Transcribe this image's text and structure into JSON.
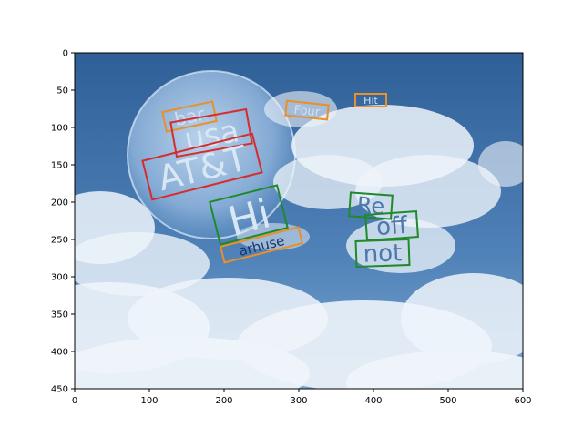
{
  "axes": {
    "x_ticks": [
      "0",
      "100",
      "200",
      "300",
      "400",
      "500",
      "600"
    ],
    "y_ticks": [
      "0",
      "50",
      "100",
      "150",
      "200",
      "250",
      "300",
      "350",
      "400",
      "450"
    ],
    "xlim": [
      0,
      600
    ],
    "ylim": [
      450,
      0
    ]
  },
  "scene": {
    "words": [
      {
        "text": "bar",
        "color": "#e8902a"
      },
      {
        "text": "usa",
        "color": "#d62c2c"
      },
      {
        "text": "AT&T",
        "color": "#d62c2c"
      },
      {
        "text": "Hi",
        "color": "#1f8a2a"
      },
      {
        "text": "arhuse",
        "color": "#e8902a"
      },
      {
        "text": "Four",
        "color": "#e8902a"
      },
      {
        "text": "Hit",
        "color": "#e8902a"
      },
      {
        "text": "Re",
        "color": "#1f8a2a"
      },
      {
        "text": "off",
        "color": "#1f8a2a"
      },
      {
        "text": "not",
        "color": "#1f8a2a"
      }
    ]
  },
  "colors": {
    "sky_top": "#2f5f97",
    "sky_bottom": "#7ea6cf",
    "cloud": "#eef4fa",
    "planet": "#a9c7e6"
  }
}
